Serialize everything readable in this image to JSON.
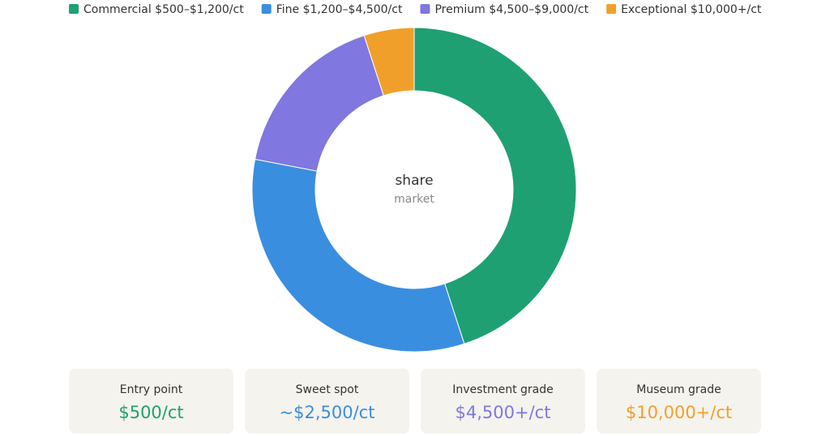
{
  "chart_data": {
    "type": "pie",
    "donut": true,
    "categories": [
      "Commercial $500–$1,200/ct",
      "Fine $1,200–$4,500/ct",
      "Premium $4,500–$9,000/ct",
      "Exceptional $10,000+/ct"
    ],
    "values": [
      45,
      33,
      17,
      5
    ],
    "colors": [
      "#1ea073",
      "#3a8ee0",
      "#8077e0",
      "#f0a02a"
    ],
    "center_title": "share",
    "center_subtitle": "market",
    "legend": "top"
  },
  "cards": [
    {
      "label": "Entry point",
      "value": "$500/ct"
    },
    {
      "label": "Sweet spot",
      "value": "~$2,500/ct"
    },
    {
      "label": "Investment grade",
      "value": "$4,500+/ct"
    },
    {
      "label": "Museum grade",
      "value": "$10,000+/ct"
    }
  ]
}
